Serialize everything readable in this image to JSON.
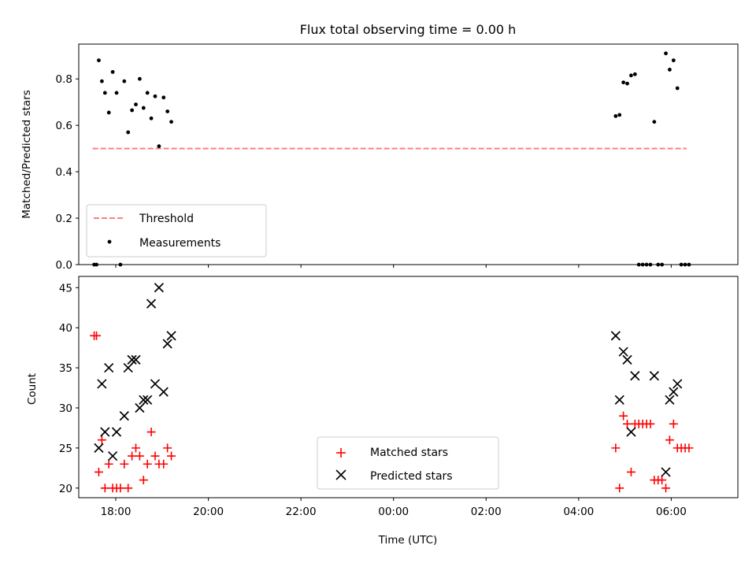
{
  "chart_data": [
    {
      "type": "scatter",
      "title": "Flux total observing time = 0.00 h",
      "xlabel": "",
      "ylabel": "Matched/Predicted stars",
      "ylim": [
        0,
        0.95
      ],
      "yticks": [
        0.0,
        0.2,
        0.4,
        0.6,
        0.8
      ],
      "ytick_labels": [
        "0.0",
        "0.2",
        "0.4",
        "0.6",
        "0.8"
      ],
      "grid": false,
      "legend_position": "lower-left",
      "series": [
        {
          "name": "Threshold",
          "kind": "line",
          "style": "dashed",
          "color": "#ff7f7f",
          "points": [
            {
              "x": "17:30",
              "y": 0.5
            },
            {
              "x": "06:20",
              "y": 0.5
            }
          ]
        },
        {
          "name": "Measurements",
          "kind": "scatter",
          "marker": "dot",
          "color": "#000000",
          "points": [
            {
              "x": "17:32",
              "y": 0.0
            },
            {
              "x": "17:35",
              "y": 0.0
            },
            {
              "x": "17:38",
              "y": 0.88
            },
            {
              "x": "17:42",
              "y": 0.79
            },
            {
              "x": "17:46",
              "y": 0.74
            },
            {
              "x": "17:51",
              "y": 0.655
            },
            {
              "x": "17:56",
              "y": 0.83
            },
            {
              "x": "18:01",
              "y": 0.74
            },
            {
              "x": "18:06",
              "y": 0.0
            },
            {
              "x": "18:11",
              "y": 0.79
            },
            {
              "x": "18:16",
              "y": 0.57
            },
            {
              "x": "18:21",
              "y": 0.665
            },
            {
              "x": "18:26",
              "y": 0.69
            },
            {
              "x": "18:31",
              "y": 0.8
            },
            {
              "x": "18:36",
              "y": 0.675
            },
            {
              "x": "18:41",
              "y": 0.74
            },
            {
              "x": "18:46",
              "y": 0.63
            },
            {
              "x": "18:51",
              "y": 0.725
            },
            {
              "x": "18:56",
              "y": 0.51
            },
            {
              "x": "19:02",
              "y": 0.72
            },
            {
              "x": "19:07",
              "y": 0.66
            },
            {
              "x": "19:12",
              "y": 0.615
            },
            {
              "x": "04:48",
              "y": 0.64
            },
            {
              "x": "04:53",
              "y": 0.645
            },
            {
              "x": "04:58",
              "y": 0.785
            },
            {
              "x": "05:03",
              "y": 0.78
            },
            {
              "x": "05:08",
              "y": 0.815
            },
            {
              "x": "05:13",
              "y": 0.82
            },
            {
              "x": "05:18",
              "y": 0.0
            },
            {
              "x": "05:23",
              "y": 0.0
            },
            {
              "x": "05:28",
              "y": 0.0
            },
            {
              "x": "05:33",
              "y": 0.0
            },
            {
              "x": "05:38",
              "y": 0.615
            },
            {
              "x": "05:43",
              "y": 0.0
            },
            {
              "x": "05:48",
              "y": 0.0
            },
            {
              "x": "05:53",
              "y": 0.91
            },
            {
              "x": "05:58",
              "y": 0.84
            },
            {
              "x": "06:03",
              "y": 0.88
            },
            {
              "x": "06:08",
              "y": 0.76
            },
            {
              "x": "06:13",
              "y": 0.0
            },
            {
              "x": "06:18",
              "y": 0.0
            },
            {
              "x": "06:23",
              "y": 0.0
            }
          ]
        }
      ]
    },
    {
      "type": "scatter",
      "title": "",
      "xlabel": "Time (UTC)",
      "ylabel": "Count",
      "ylim": [
        18.8,
        46.4
      ],
      "yticks": [
        20,
        25,
        30,
        35,
        40,
        45
      ],
      "ytick_labels": [
        "20",
        "25",
        "30",
        "35",
        "40",
        "45"
      ],
      "xticks": [
        "18:00",
        "20:00",
        "22:00",
        "00:00",
        "02:00",
        "04:00",
        "06:00"
      ],
      "grid": false,
      "legend_position": "lower-center",
      "series": [
        {
          "name": "Matched stars",
          "kind": "scatter",
          "marker": "plus",
          "color": "#ff0000",
          "points": [
            {
              "x": "17:32",
              "y": 39
            },
            {
              "x": "17:35",
              "y": 39
            },
            {
              "x": "17:38",
              "y": 22
            },
            {
              "x": "17:42",
              "y": 26
            },
            {
              "x": "17:46",
              "y": 20
            },
            {
              "x": "17:51",
              "y": 23
            },
            {
              "x": "17:56",
              "y": 20
            },
            {
              "x": "18:01",
              "y": 20
            },
            {
              "x": "18:06",
              "y": 20
            },
            {
              "x": "18:11",
              "y": 23
            },
            {
              "x": "18:16",
              "y": 20
            },
            {
              "x": "18:21",
              "y": 24
            },
            {
              "x": "18:26",
              "y": 25
            },
            {
              "x": "18:31",
              "y": 24
            },
            {
              "x": "18:36",
              "y": 21
            },
            {
              "x": "18:41",
              "y": 23
            },
            {
              "x": "18:46",
              "y": 27
            },
            {
              "x": "18:51",
              "y": 24
            },
            {
              "x": "18:56",
              "y": 23
            },
            {
              "x": "19:02",
              "y": 23
            },
            {
              "x": "19:07",
              "y": 25
            },
            {
              "x": "19:12",
              "y": 24
            },
            {
              "x": "04:48",
              "y": 25
            },
            {
              "x": "04:53",
              "y": 20
            },
            {
              "x": "04:58",
              "y": 29
            },
            {
              "x": "05:03",
              "y": 28
            },
            {
              "x": "05:08",
              "y": 22
            },
            {
              "x": "05:13",
              "y": 28
            },
            {
              "x": "05:18",
              "y": 28
            },
            {
              "x": "05:23",
              "y": 28
            },
            {
              "x": "05:28",
              "y": 28
            },
            {
              "x": "05:33",
              "y": 28
            },
            {
              "x": "05:38",
              "y": 21
            },
            {
              "x": "05:43",
              "y": 21
            },
            {
              "x": "05:48",
              "y": 21
            },
            {
              "x": "05:53",
              "y": 20
            },
            {
              "x": "05:58",
              "y": 26
            },
            {
              "x": "06:03",
              "y": 28
            },
            {
              "x": "06:08",
              "y": 25
            },
            {
              "x": "06:13",
              "y": 25
            },
            {
              "x": "06:18",
              "y": 25
            },
            {
              "x": "06:23",
              "y": 25
            }
          ]
        },
        {
          "name": "Predicted stars",
          "kind": "scatter",
          "marker": "x",
          "color": "#000000",
          "points": [
            {
              "x": "17:38",
              "y": 25
            },
            {
              "x": "17:42",
              "y": 33
            },
            {
              "x": "17:46",
              "y": 27
            },
            {
              "x": "17:51",
              "y": 35
            },
            {
              "x": "17:56",
              "y": 24
            },
            {
              "x": "18:01",
              "y": 27
            },
            {
              "x": "18:11",
              "y": 29
            },
            {
              "x": "18:16",
              "y": 35
            },
            {
              "x": "18:21",
              "y": 36
            },
            {
              "x": "18:26",
              "y": 36
            },
            {
              "x": "18:31",
              "y": 30
            },
            {
              "x": "18:36",
              "y": 31
            },
            {
              "x": "18:41",
              "y": 31
            },
            {
              "x": "18:46",
              "y": 43
            },
            {
              "x": "18:51",
              "y": 33
            },
            {
              "x": "18:56",
              "y": 45
            },
            {
              "x": "19:02",
              "y": 32
            },
            {
              "x": "19:07",
              "y": 38
            },
            {
              "x": "19:12",
              "y": 39
            },
            {
              "x": "04:48",
              "y": 39
            },
            {
              "x": "04:53",
              "y": 31
            },
            {
              "x": "04:58",
              "y": 37
            },
            {
              "x": "05:03",
              "y": 36
            },
            {
              "x": "05:08",
              "y": 27
            },
            {
              "x": "05:13",
              "y": 34
            },
            {
              "x": "05:38",
              "y": 34
            },
            {
              "x": "05:53",
              "y": 22
            },
            {
              "x": "05:58",
              "y": 31
            },
            {
              "x": "06:03",
              "y": 32
            },
            {
              "x": "06:08",
              "y": 33
            }
          ]
        }
      ]
    }
  ]
}
